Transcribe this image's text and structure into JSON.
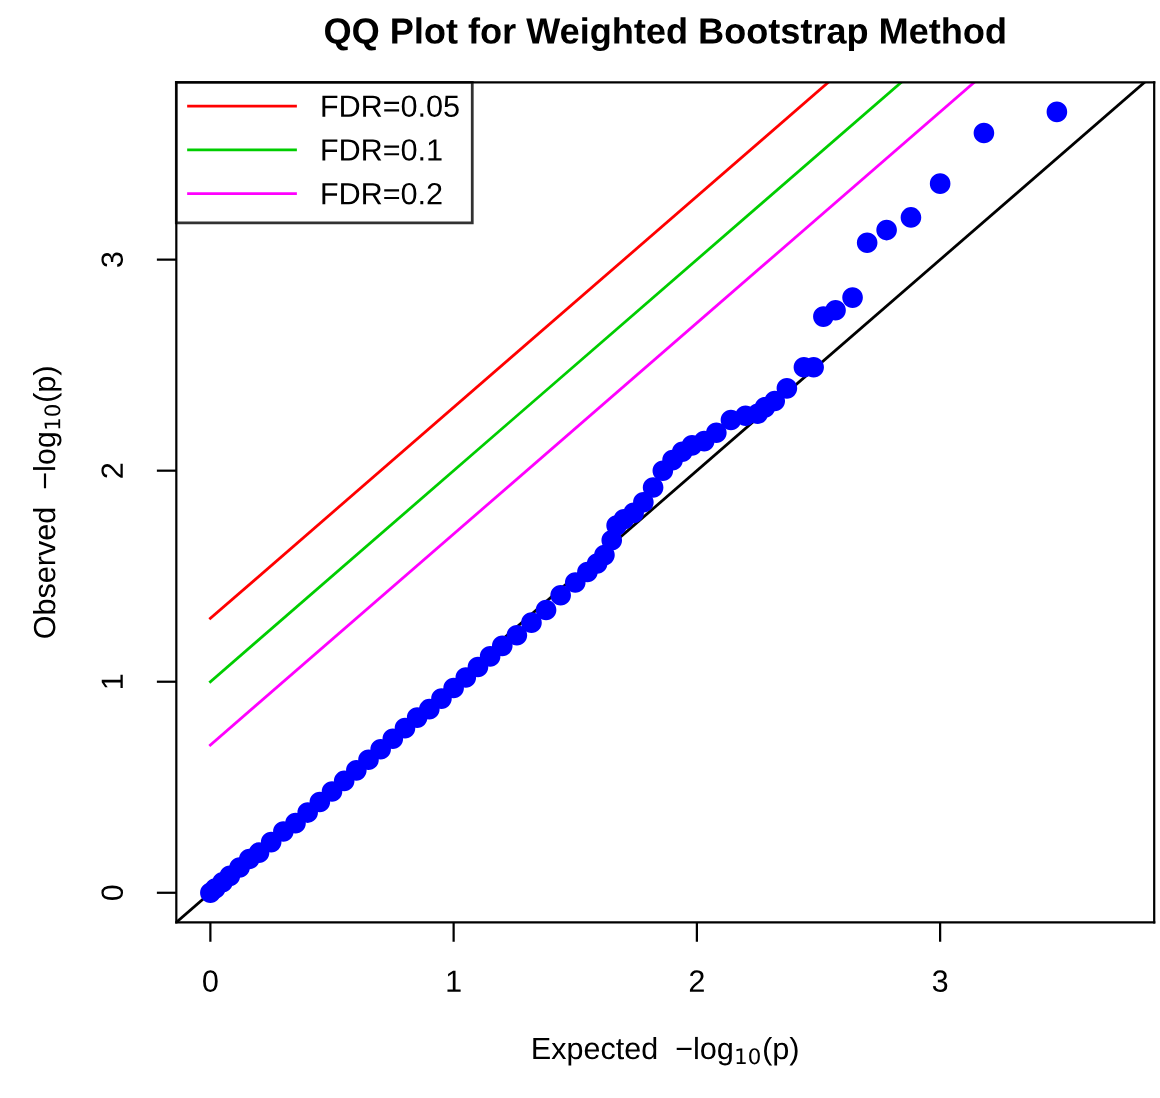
{
  "chart_data": {
    "type": "scatter",
    "title": "QQ Plot for Weighted Bootstrap Method",
    "xlabel": "Expected  −log$_{10}$(p)",
    "ylabel": "Observed  −log$_{10}$(p)",
    "xlim": [
      -0.14,
      3.88
    ],
    "ylim": [
      -0.14,
      3.84
    ],
    "xticks": [
      0,
      1,
      2,
      3
    ],
    "yticks": [
      0,
      1,
      2,
      3
    ],
    "grid": false,
    "legend": "top left",
    "series": [
      {
        "color": "#0000ff",
        "marker": "circle",
        "x": [
          0.0,
          0.02,
          0.05,
          0.08,
          0.12,
          0.16,
          0.2,
          0.25,
          0.3,
          0.35,
          0.4,
          0.45,
          0.5,
          0.55,
          0.6,
          0.65,
          0.7,
          0.75,
          0.8,
          0.85,
          0.9,
          0.95,
          1.0,
          1.05,
          1.1,
          1.15,
          1.2,
          1.26,
          1.32,
          1.38,
          1.44,
          1.5,
          1.55,
          1.59,
          1.62,
          1.65,
          1.67,
          1.7,
          1.74,
          1.78,
          1.82,
          1.86,
          1.9,
          1.94,
          1.98,
          2.03,
          2.08,
          2.14,
          2.2,
          2.25,
          2.28,
          2.32,
          2.37,
          2.44,
          2.48,
          2.52,
          2.57,
          2.64,
          2.7,
          2.78,
          2.88,
          3.0,
          3.18,
          3.48
        ],
        "values": [
          0.0,
          0.02,
          0.05,
          0.08,
          0.12,
          0.16,
          0.19,
          0.24,
          0.29,
          0.33,
          0.38,
          0.43,
          0.48,
          0.53,
          0.58,
          0.63,
          0.68,
          0.73,
          0.78,
          0.83,
          0.87,
          0.92,
          0.97,
          1.02,
          1.07,
          1.12,
          1.17,
          1.22,
          1.28,
          1.34,
          1.41,
          1.47,
          1.52,
          1.56,
          1.6,
          1.67,
          1.74,
          1.77,
          1.8,
          1.85,
          1.92,
          2.0,
          2.05,
          2.09,
          2.12,
          2.14,
          2.18,
          2.24,
          2.26,
          2.27,
          2.3,
          2.33,
          2.39,
          2.49,
          2.49,
          2.73,
          2.76,
          2.82,
          3.08,
          3.14,
          3.2,
          3.36,
          3.6,
          3.7
        ]
      },
      {
        "type": "line",
        "color": "#000000",
        "x": [
          -0.14,
          3.84
        ],
        "values": [
          -0.14,
          3.84
        ]
      },
      {
        "type": "line",
        "name": "FDR=0.05",
        "color": "#ff0000",
        "x": [
          0,
          2.54
        ],
        "values": [
          1.3,
          3.84
        ]
      },
      {
        "type": "line",
        "name": "FDR=0.1",
        "color": "#00cd00",
        "x": [
          0,
          2.84
        ],
        "values": [
          1.0,
          3.84
        ]
      },
      {
        "type": "line",
        "name": "FDR=0.2",
        "color": "#ff00ff",
        "x": [
          0,
          3.14
        ],
        "values": [
          0.7,
          3.84
        ]
      }
    ]
  }
}
